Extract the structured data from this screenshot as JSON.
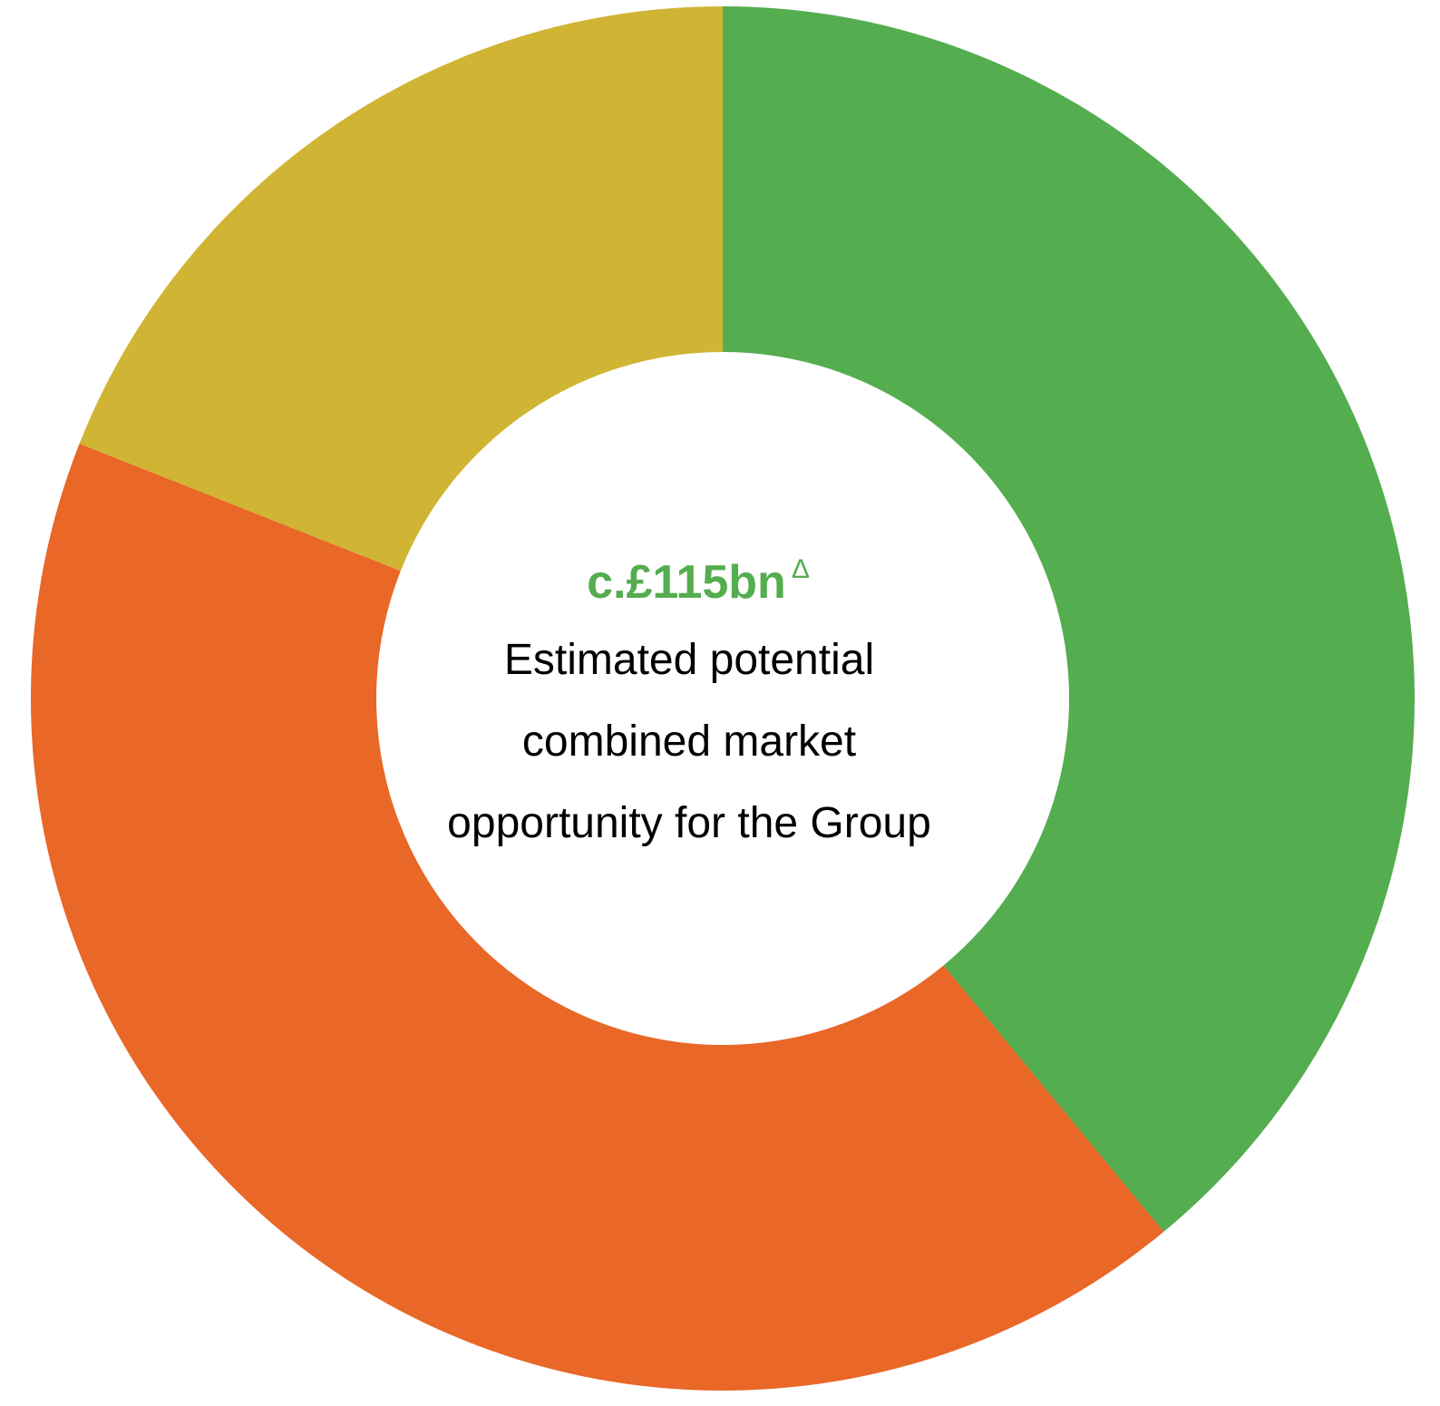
{
  "chart_data": {
    "type": "pie",
    "variant": "donut",
    "slices": [
      {
        "value": 39,
        "color": "#54AD4F"
      },
      {
        "value": 42,
        "color": "#E96727"
      },
      {
        "value": 19,
        "color": "#D0B433"
      }
    ],
    "center": {
      "value_text": "c.£115bn",
      "value_mark": "Δ",
      "value_color": "#54AD4F",
      "lines": [
        "Estimated potential",
        "combined market",
        "opportunity for the Group"
      ]
    }
  }
}
